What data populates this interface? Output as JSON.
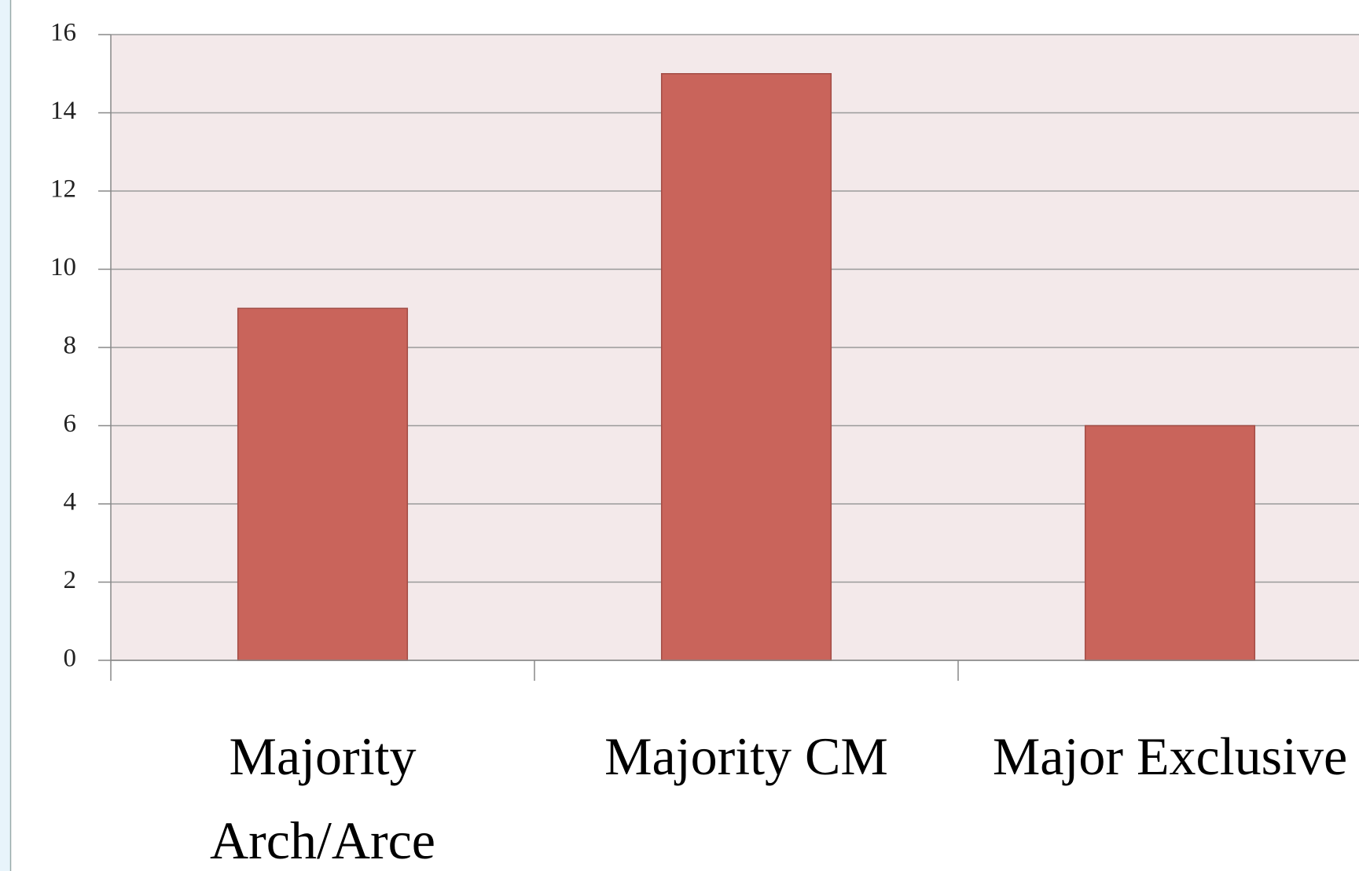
{
  "chart_data": {
    "type": "bar",
    "categories": [
      "Majority Arch/Arce",
      "Majority CM",
      "Major Exclusive"
    ],
    "values": [
      9,
      15,
      6
    ],
    "color": "#c9645b",
    "ylim": [
      0,
      16
    ],
    "yticks": [
      0,
      2,
      4,
      6,
      8,
      10,
      12,
      14,
      16
    ],
    "grid": true
  }
}
